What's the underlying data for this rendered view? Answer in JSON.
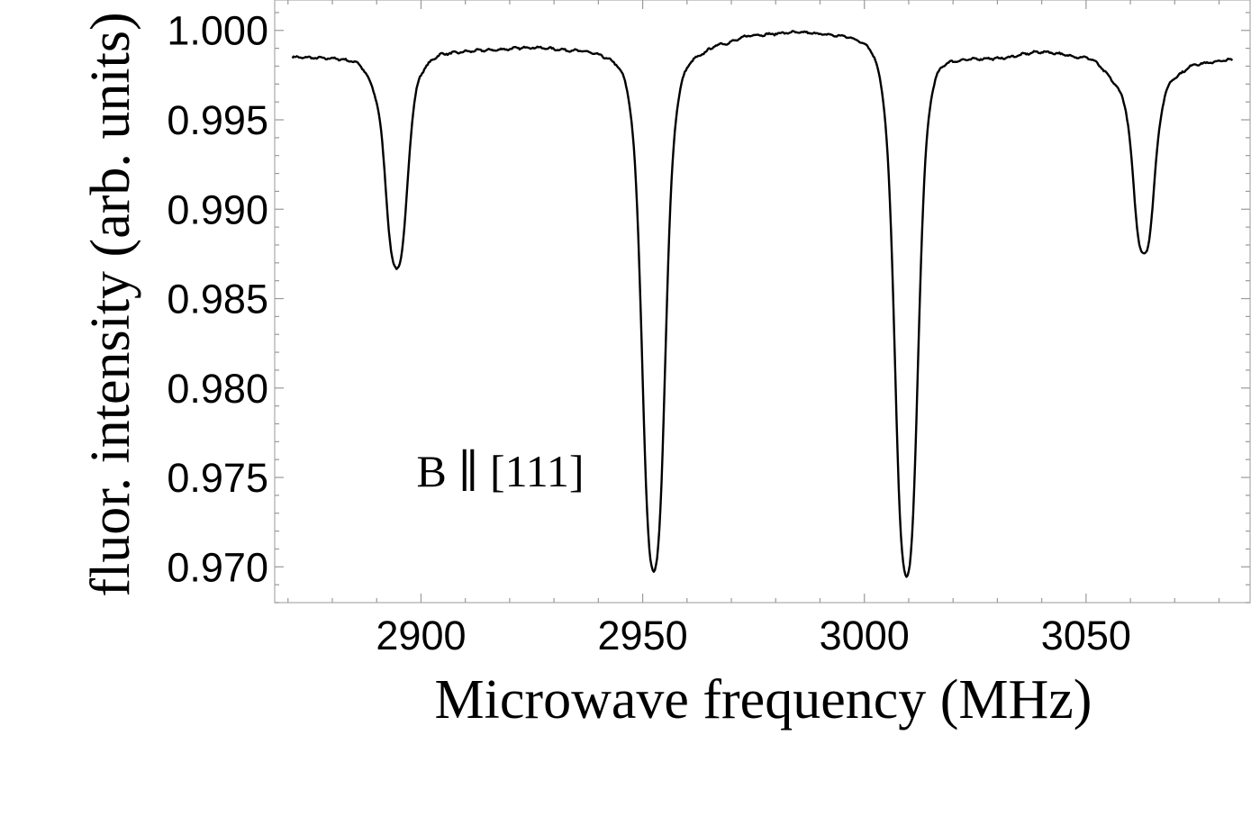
{
  "chart_data": {
    "type": "line",
    "title": "",
    "xlabel": "Microwave frequency (MHz)",
    "ylabel": "fluor. intensity (arb. units)",
    "xlim": [
      2867,
      3087
    ],
    "ylim": [
      0.968,
      1.0017
    ],
    "xticks": [
      2900,
      2950,
      3000,
      3050
    ],
    "xtick_labels": [
      "2900",
      "2950",
      "3000",
      "3050"
    ],
    "yticks": [
      0.97,
      0.975,
      0.98,
      0.985,
      0.99,
      0.995,
      1.0
    ],
    "ytick_labels": [
      "0.970",
      "0.975",
      "0.980",
      "0.985",
      "0.990",
      "0.995",
      "1.000"
    ],
    "grid": false,
    "annotations": [
      {
        "text": "B ∥ [111]",
        "x": 2899,
        "y": 0.9745
      }
    ],
    "series": [
      {
        "color": "#000000",
        "baseline": [
          [
            2871,
            0.9985
          ],
          [
            2880,
            0.99845
          ],
          [
            2885,
            0.99835
          ],
          [
            2890,
            0.9975
          ],
          [
            2895,
            0.9975
          ],
          [
            2900,
            0.9983
          ],
          [
            2905,
            0.99875
          ],
          [
            2915,
            0.9989
          ],
          [
            2925,
            0.99905
          ],
          [
            2935,
            0.9989
          ],
          [
            2945,
            0.9986
          ],
          [
            2950,
            0.9983
          ],
          [
            2955,
            0.9985
          ],
          [
            2962,
            0.9988
          ],
          [
            2968,
            0.9993
          ],
          [
            2975,
            0.99975
          ],
          [
            2985,
            0.9999
          ],
          [
            2995,
            0.99975
          ],
          [
            3000,
            0.9996
          ],
          [
            3008,
            0.9988
          ],
          [
            3015,
            0.9987
          ],
          [
            3022,
            0.99845
          ],
          [
            3030,
            0.99845
          ],
          [
            3040,
            0.9988
          ],
          [
            3050,
            0.9985
          ],
          [
            3058,
            0.9972
          ],
          [
            3065,
            0.9968
          ],
          [
            3070,
            0.9976
          ],
          [
            3075,
            0.99815
          ],
          [
            3083,
            0.99835
          ]
        ],
        "dips": [
          {
            "center": 2894.5,
            "min": 0.9867,
            "width": 2.9
          },
          {
            "center": 2952.5,
            "min": 0.9698,
            "width": 3.1
          },
          {
            "center": 3009.5,
            "min": 0.9695,
            "width": 3.1
          },
          {
            "center": 3063.0,
            "min": 0.9875,
            "width": 2.8
          }
        ],
        "noise_amplitude": 8e-05
      }
    ]
  }
}
